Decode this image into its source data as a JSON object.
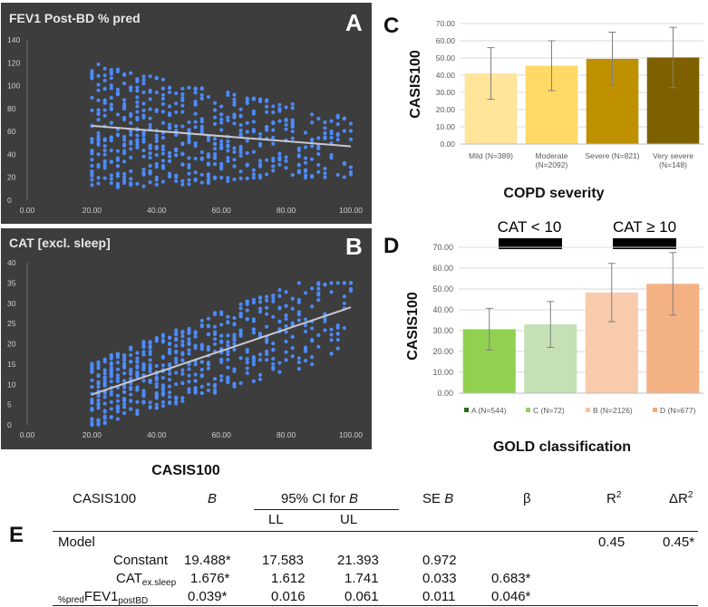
{
  "panel_labels": {
    "A": "A",
    "B": "B",
    "C": "C",
    "D": "D",
    "E": "E"
  },
  "colors": {
    "dark_bg": "#3d3d3d",
    "dot": "#4d8dff",
    "trend": "#c8c8d0",
    "c_bars": [
      "#ffe49a",
      "#ffd966",
      "#bf9000",
      "#7f6000"
    ],
    "d_bars": [
      "#92d050",
      "#c5e0b4",
      "#f8cbad",
      "#f4b183"
    ],
    "d_legend_markers": [
      "#2e6b1a",
      "#8fd06a",
      "#f5c0a0",
      "#f4a97a"
    ]
  },
  "bottom_xlabel": "CASIS100",
  "chart_data": [
    {
      "type": "scatter",
      "title": "FEV1 Post-BD % pred",
      "xlim": [
        0,
        100
      ],
      "ylim": [
        0,
        140
      ],
      "xticks": [
        "0.00",
        "20.00",
        "40.00",
        "60.00",
        "80.00",
        "100.00"
      ],
      "yticks": [
        "0",
        "20",
        "40",
        "60",
        "80",
        "100",
        "120",
        "140"
      ],
      "x_range": [
        20,
        100
      ],
      "trendline": {
        "x": [
          20,
          100
        ],
        "y": [
          65,
          47
        ]
      },
      "xlabel": "CASIS100",
      "ylabel": ""
    },
    {
      "type": "scatter",
      "title": "CAT [excl. sleep]",
      "xlim": [
        0,
        100
      ],
      "ylim": [
        0,
        40
      ],
      "xticks": [
        "0.00",
        "20.00",
        "40.00",
        "60.00",
        "80.00",
        "100.00"
      ],
      "yticks": [
        "0",
        "5",
        "10",
        "15",
        "20",
        "25",
        "30",
        "35",
        "40"
      ],
      "x_range": [
        20,
        100
      ],
      "trendline": {
        "x": [
          20,
          100
        ],
        "y": [
          7.5,
          29
        ]
      },
      "xlabel": "CASIS100",
      "ylabel": ""
    },
    {
      "type": "bar",
      "title": "",
      "categories": [
        "Mild (N=389)",
        "Moderate (N=2092)",
        "Severe (N=821)",
        "Very severe (N=148)"
      ],
      "category_lines": [
        [
          "Mild (N=389)"
        ],
        [
          "Moderate",
          "(N=2092)"
        ],
        [
          "Severe (N=821)"
        ],
        [
          "Very severe",
          "(N=148)"
        ]
      ],
      "values": [
        41.0,
        45.5,
        49.5,
        50.3
      ],
      "error": [
        15.0,
        14.5,
        15.5,
        17.5
      ],
      "ylim": [
        0,
        70
      ],
      "yticks": [
        "0.00",
        "10.00",
        "20.00",
        "30.00",
        "40.00",
        "50.00",
        "60.00",
        "70.00"
      ],
      "xlabel": "COPD severity",
      "ylabel": "CASIS100"
    },
    {
      "type": "bar",
      "title": "",
      "categories": [
        "A (N=544)",
        "C (N=72)",
        "B (N=2126)",
        "D (N=677)"
      ],
      "values": [
        30.7,
        33.0,
        48.3,
        52.5
      ],
      "error": [
        10.0,
        11.0,
        14.0,
        15.0
      ],
      "ylim": [
        0,
        70
      ],
      "yticks": [
        "0.00",
        "10.00",
        "20.00",
        "30.00",
        "40.00",
        "50.00",
        "60.00",
        "70.00"
      ],
      "group_labels": [
        "CAT < 10",
        "CAT ≥ 10"
      ],
      "xlabel": "GOLD classification",
      "ylabel": "CASIS100"
    },
    {
      "type": "table",
      "headers": {
        "col0": "CASIS100",
        "b": "B",
        "ci_prefix": "95% CI for ",
        "ci_b": "B",
        "ll": "LL",
        "ul": "UL",
        "se_prefix": "SE ",
        "se_b": "B",
        "beta": "β",
        "r2_base": "R",
        "r2_sup": "2",
        "dr2_base": "ΔR",
        "dr2_sup": "2"
      },
      "model": {
        "label": "Model",
        "r2": "0.45",
        "dr2": "0.45*"
      },
      "rows": [
        {
          "label": "Constant",
          "b": "19.488*",
          "ll": "17.583",
          "ul": "21.393",
          "se": "0.972",
          "beta": ""
        },
        {
          "label_base": "CAT",
          "label_sub": "ex.sleep",
          "b": "1.676*",
          "ll": "1.612",
          "ul": "1.741",
          "se": "0.033",
          "beta": "0.683*"
        },
        {
          "label_pre": "%pred",
          "label_base": "FEV1",
          "label_sub": "postBD",
          "b": "0.039*",
          "ll": "0.016",
          "ul": "0.061",
          "se": "0.011",
          "beta": "0.046*"
        }
      ]
    }
  ]
}
